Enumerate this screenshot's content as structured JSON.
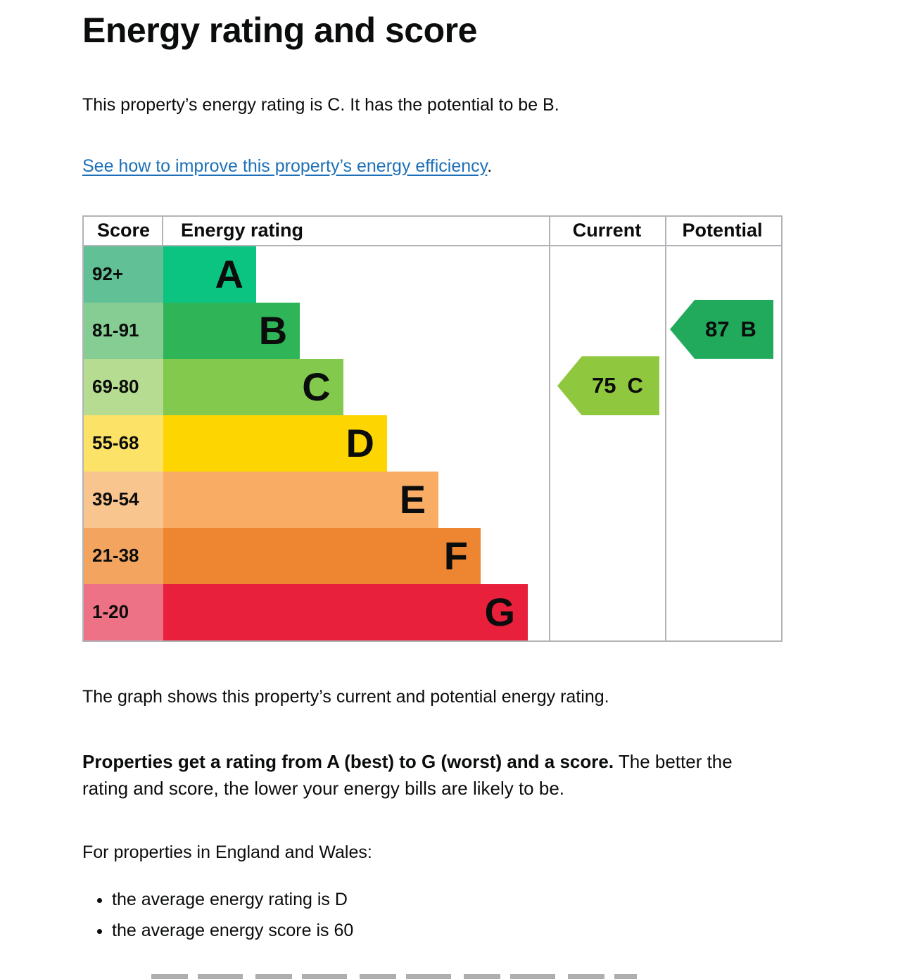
{
  "page": {
    "title": "Energy rating and score",
    "intro": "This property’s energy rating is C. It has the potential to be B.",
    "improvement_link": "See how to improve this property’s energy efficiency",
    "improvement_link_suffix": ".",
    "graph_caption": "The graph shows this property’s current and potential energy rating.",
    "rating_explanation_bold": "Properties get a rating from A (best) to G (worst) and a score.",
    "rating_explanation_rest": " The better the rating and score, the lower your energy bills are likely to be.",
    "region_heading": "For properties in England and Wales:",
    "bullet_items": [
      "the average energy rating is D",
      "the average energy score is 60"
    ]
  },
  "chart_data": {
    "type": "bar",
    "subtype": "epc-energy-rating-graph",
    "title": "Energy rating and score",
    "headers": {
      "score": "Score",
      "rating": "Energy rating",
      "current": "Current",
      "potential": "Potential"
    },
    "bands": [
      {
        "letter": "A",
        "score_range": "92+",
        "bar_color": "#0cc481",
        "score_tint": "#62c096",
        "width_pct": 24.0
      },
      {
        "letter": "B",
        "score_range": "81-91",
        "bar_color": "#2fb457",
        "score_tint": "#85cd92",
        "width_pct": 35.3
      },
      {
        "letter": "C",
        "score_range": "69-80",
        "bar_color": "#83c94e",
        "score_tint": "#b5dc90",
        "width_pct": 46.5
      },
      {
        "letter": "D",
        "score_range": "55-68",
        "bar_color": "#fdd500",
        "score_tint": "#fde268",
        "width_pct": 57.8
      },
      {
        "letter": "E",
        "score_range": "39-54",
        "bar_color": "#f9ac64",
        "score_tint": "#f9c58f",
        "width_pct": 71.1
      },
      {
        "letter": "F",
        "score_range": "21-38",
        "bar_color": "#ee8631",
        "score_tint": "#f3a55f",
        "width_pct": 82.0
      },
      {
        "letter": "G",
        "score_range": "1-20",
        "bar_color": "#e8203c",
        "score_tint": "#ee7285",
        "width_pct": 94.2
      }
    ],
    "current": {
      "value": 75,
      "letter": "C",
      "arrow_color": "#8fc83e",
      "band_index": 2
    },
    "potential": {
      "value": 87,
      "letter": "B",
      "arrow_color": "#21aa5b",
      "band_index": 1
    }
  },
  "colors": {
    "text": "#0b0c0c",
    "link": "#1d70b8",
    "gridline": "#b1b4b6"
  }
}
